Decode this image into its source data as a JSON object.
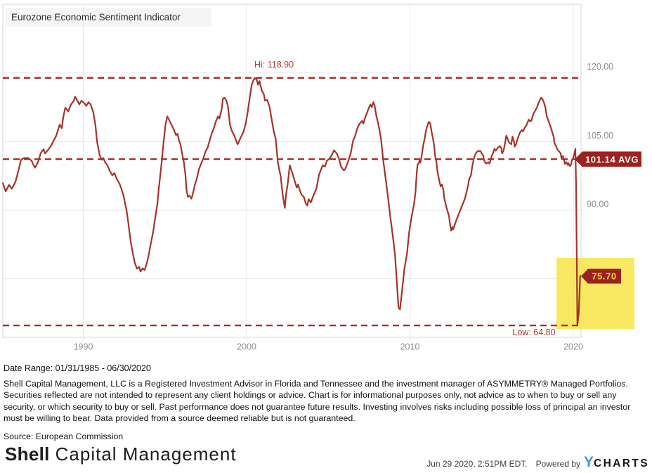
{
  "chart": {
    "title": "Eurozone Economic Sentiment Indicator",
    "hi_label": "Hi: 118.90",
    "low_label": "Low: 64.80",
    "avg_badge": "101.14 AVG",
    "last_badge": "75.70"
  },
  "colors": {
    "line": "#a5332a",
    "dashed": "#ab2d23",
    "badge": "#9c2121",
    "badge_text": "#ffffff",
    "last_badge_text": "#f3d73d",
    "highlight": "#f7e43b",
    "label_red": "#b5372e",
    "axis_gray": "#8e8e8e",
    "gridline": "#e7e7e7",
    "plot_border": "#d6d6d6",
    "title_box": "#f5f5f5",
    "ycharts_blue": "#3f97e6"
  },
  "chart_data": {
    "type": "line",
    "title": "Eurozone Economic Sentiment Indicator",
    "xlabel": "",
    "ylabel": "",
    "x_range": [
      1985.0,
      2020.5
    ],
    "high": 118.9,
    "average": 101.14,
    "low": 64.8,
    "last": 75.7,
    "y_gridline_values": [
      120,
      105,
      90,
      75
    ],
    "y_ticks": [
      {
        "label": "120.00",
        "value": 120
      },
      {
        "label": "105.00",
        "value": 105
      },
      {
        "label": "90.00",
        "value": 90
      }
    ],
    "x_ticks": [
      {
        "label": "1990",
        "year": 1990
      },
      {
        "label": "2000",
        "year": 2000
      },
      {
        "label": "2010",
        "year": 2010
      },
      {
        "label": "2020",
        "year": 2020
      }
    ],
    "legend_position": "none",
    "grid": true,
    "points": [
      [
        1985.08,
        95.9
      ],
      [
        1985.25,
        94.1
      ],
      [
        1985.46,
        95.5
      ],
      [
        1985.63,
        94.7
      ],
      [
        1985.85,
        96.2
      ],
      [
        1986.02,
        98.5
      ],
      [
        1986.19,
        101.0
      ],
      [
        1986.37,
        101.4
      ],
      [
        1986.62,
        101.4
      ],
      [
        1986.84,
        100.8
      ],
      [
        1986.92,
        100.1
      ],
      [
        1987.05,
        99.3
      ],
      [
        1987.23,
        100.5
      ],
      [
        1987.4,
        102.5
      ],
      [
        1987.57,
        103.3
      ],
      [
        1987.66,
        102.4
      ],
      [
        1987.83,
        103.1
      ],
      [
        1988.0,
        103.9
      ],
      [
        1988.17,
        105.1
      ],
      [
        1988.34,
        106.2
      ],
      [
        1988.56,
        108.7
      ],
      [
        1988.69,
        107.9
      ],
      [
        1988.77,
        110.2
      ],
      [
        1988.9,
        112.4
      ],
      [
        1989.08,
        111.6
      ],
      [
        1989.25,
        113.1
      ],
      [
        1989.42,
        113.9
      ],
      [
        1989.5,
        114.8
      ],
      [
        1989.63,
        114.0
      ],
      [
        1989.76,
        113.1
      ],
      [
        1989.89,
        113.9
      ],
      [
        1990.06,
        113.4
      ],
      [
        1990.19,
        112.8
      ],
      [
        1990.32,
        113.6
      ],
      [
        1990.45,
        113.1
      ],
      [
        1990.62,
        111.3
      ],
      [
        1990.75,
        108.5
      ],
      [
        1990.84,
        105.1
      ],
      [
        1991.01,
        101.9
      ],
      [
        1991.14,
        101.0
      ],
      [
        1991.23,
        101.4
      ],
      [
        1991.35,
        100.4
      ],
      [
        1991.48,
        99.8
      ],
      [
        1991.61,
        98.7
      ],
      [
        1991.78,
        97.6
      ],
      [
        1991.91,
        98.1
      ],
      [
        1992.04,
        96.9
      ],
      [
        1992.22,
        95.8
      ],
      [
        1992.34,
        94.6
      ],
      [
        1992.47,
        93.1
      ],
      [
        1992.65,
        90.0
      ],
      [
        1992.77,
        86.9
      ],
      [
        1992.9,
        83.2
      ],
      [
        1993.03,
        80.7
      ],
      [
        1993.16,
        78.4
      ],
      [
        1993.29,
        77.2
      ],
      [
        1993.42,
        77.6
      ],
      [
        1993.51,
        76.6
      ],
      [
        1993.64,
        77.3
      ],
      [
        1993.76,
        76.9
      ],
      [
        1993.89,
        78.4
      ],
      [
        1994.02,
        80.4
      ],
      [
        1994.15,
        83.0
      ],
      [
        1994.28,
        85.3
      ],
      [
        1994.41,
        88.4
      ],
      [
        1994.54,
        91.5
      ],
      [
        1994.62,
        94.5
      ],
      [
        1994.71,
        97.5
      ],
      [
        1994.8,
        100.5
      ],
      [
        1994.88,
        103.6
      ],
      [
        1994.97,
        106.7
      ],
      [
        1995.05,
        109.0
      ],
      [
        1995.15,
        110.5
      ],
      [
        1995.3,
        109.4
      ],
      [
        1995.43,
        108.5
      ],
      [
        1995.56,
        107.4
      ],
      [
        1995.68,
        106.4
      ],
      [
        1995.77,
        106.7
      ],
      [
        1995.86,
        105.3
      ],
      [
        1995.95,
        104.4
      ],
      [
        1996.05,
        102.4
      ],
      [
        1996.16,
        100.5
      ],
      [
        1996.25,
        97.9
      ],
      [
        1996.32,
        94.5
      ],
      [
        1996.4,
        92.9
      ],
      [
        1996.49,
        93.2
      ],
      [
        1996.62,
        92.5
      ],
      [
        1996.7,
        93.5
      ],
      [
        1996.83,
        95.5
      ],
      [
        1996.96,
        97.0
      ],
      [
        1997.09,
        99.0
      ],
      [
        1997.22,
        100.2
      ],
      [
        1997.35,
        101.3
      ],
      [
        1997.48,
        102.8
      ],
      [
        1997.61,
        103.6
      ],
      [
        1997.73,
        105.1
      ],
      [
        1997.86,
        106.7
      ],
      [
        1997.99,
        107.9
      ],
      [
        1998.12,
        109.4
      ],
      [
        1998.25,
        110.5
      ],
      [
        1998.34,
        110.0
      ],
      [
        1998.47,
        112.0
      ],
      [
        1998.55,
        114.3
      ],
      [
        1998.64,
        114.6
      ],
      [
        1998.77,
        113.9
      ],
      [
        1998.85,
        112.8
      ],
      [
        1998.98,
        108.7
      ],
      [
        1999.11,
        107.2
      ],
      [
        1999.24,
        106.4
      ],
      [
        1999.37,
        105.1
      ],
      [
        1999.45,
        104.4
      ],
      [
        1999.54,
        105.1
      ],
      [
        1999.67,
        106.1
      ],
      [
        1999.8,
        107.0
      ],
      [
        1999.93,
        108.7
      ],
      [
        2000.06,
        111.3
      ],
      [
        2000.19,
        114.5
      ],
      [
        2000.31,
        117.4
      ],
      [
        2000.4,
        118.2
      ],
      [
        2000.49,
        118.9
      ],
      [
        2000.62,
        118.5
      ],
      [
        2000.7,
        117.4
      ],
      [
        2000.79,
        118.2
      ],
      [
        2000.92,
        116.2
      ],
      [
        2001.05,
        115.4
      ],
      [
        2001.13,
        113.9
      ],
      [
        2001.26,
        114.1
      ],
      [
        2001.39,
        112.8
      ],
      [
        2001.52,
        110.2
      ],
      [
        2001.65,
        107.4
      ],
      [
        2001.78,
        105.6
      ],
      [
        2001.91,
        100.5
      ],
      [
        2001.99,
        99.0
      ],
      [
        2002.08,
        97.5
      ],
      [
        2002.21,
        93.3
      ],
      [
        2002.34,
        90.5
      ],
      [
        2002.42,
        93.6
      ],
      [
        2002.51,
        95.6
      ],
      [
        2002.64,
        99.8
      ],
      [
        2002.72,
        99.0
      ],
      [
        2002.85,
        97.5
      ],
      [
        2002.94,
        96.4
      ],
      [
        2003.07,
        94.9
      ],
      [
        2003.15,
        95.6
      ],
      [
        2003.28,
        94.1
      ],
      [
        2003.37,
        93.3
      ],
      [
        2003.5,
        92.9
      ],
      [
        2003.63,
        91.4
      ],
      [
        2003.71,
        91.0
      ],
      [
        2003.8,
        92.4
      ],
      [
        2003.93,
        91.7
      ],
      [
        2004.06,
        92.9
      ],
      [
        2004.14,
        93.6
      ],
      [
        2004.27,
        94.7
      ],
      [
        2004.44,
        97.8
      ],
      [
        2004.57,
        99.0
      ],
      [
        2004.66,
        99.8
      ],
      [
        2004.79,
        99.5
      ],
      [
        2004.92,
        100.8
      ],
      [
        2005.09,
        101.3
      ],
      [
        2005.22,
        102.1
      ],
      [
        2005.35,
        103.1
      ],
      [
        2005.52,
        102.4
      ],
      [
        2005.65,
        101.3
      ],
      [
        2005.78,
        99.5
      ],
      [
        2005.95,
        98.7
      ],
      [
        2006.04,
        99.0
      ],
      [
        2006.16,
        100.1
      ],
      [
        2006.25,
        101.0
      ],
      [
        2006.38,
        102.5
      ],
      [
        2006.51,
        105.1
      ],
      [
        2006.64,
        106.2
      ],
      [
        2006.81,
        108.2
      ],
      [
        2006.94,
        109.0
      ],
      [
        2007.07,
        109.5
      ],
      [
        2007.15,
        108.9
      ],
      [
        2007.28,
        110.5
      ],
      [
        2007.37,
        111.3
      ],
      [
        2007.5,
        112.5
      ],
      [
        2007.58,
        113.1
      ],
      [
        2007.67,
        112.5
      ],
      [
        2007.76,
        113.6
      ],
      [
        2007.84,
        112.8
      ],
      [
        2007.93,
        110.8
      ],
      [
        2008.1,
        108.2
      ],
      [
        2008.23,
        105.6
      ],
      [
        2008.36,
        101.0
      ],
      [
        2008.53,
        96.4
      ],
      [
        2008.66,
        92.8
      ],
      [
        2008.79,
        88.7
      ],
      [
        2008.96,
        84.1
      ],
      [
        2009.09,
        80.1
      ],
      [
        2009.22,
        72.9
      ],
      [
        2009.3,
        68.7
      ],
      [
        2009.39,
        68.3
      ],
      [
        2009.52,
        72.4
      ],
      [
        2009.65,
        77.0
      ],
      [
        2009.82,
        80.5
      ],
      [
        2009.95,
        85.1
      ],
      [
        2010.08,
        88.2
      ],
      [
        2010.25,
        91.3
      ],
      [
        2010.34,
        94.0
      ],
      [
        2010.42,
        98.5
      ],
      [
        2010.47,
        100.0
      ],
      [
        2010.55,
        100.3
      ],
      [
        2010.6,
        101.0
      ],
      [
        2010.64,
        100.4
      ],
      [
        2010.73,
        102.2
      ],
      [
        2010.81,
        104.1
      ],
      [
        2010.9,
        105.6
      ],
      [
        2010.98,
        107.4
      ],
      [
        2011.07,
        108.5
      ],
      [
        2011.15,
        109.3
      ],
      [
        2011.24,
        109.0
      ],
      [
        2011.32,
        107.2
      ],
      [
        2011.41,
        105.6
      ],
      [
        2011.49,
        103.9
      ],
      [
        2011.53,
        102.1
      ],
      [
        2011.62,
        100.5
      ],
      [
        2011.66,
        99.0
      ],
      [
        2011.75,
        97.2
      ],
      [
        2011.83,
        95.9
      ],
      [
        2011.88,
        95.2
      ],
      [
        2011.96,
        95.6
      ],
      [
        2012.05,
        94.4
      ],
      [
        2012.09,
        92.8
      ],
      [
        2012.22,
        90.8
      ],
      [
        2012.39,
        88.7
      ],
      [
        2012.43,
        87.5
      ],
      [
        2012.52,
        85.5
      ],
      [
        2012.6,
        86.3
      ],
      [
        2012.65,
        85.8
      ],
      [
        2012.73,
        86.7
      ],
      [
        2012.86,
        88.0
      ],
      [
        2013.0,
        89.3
      ],
      [
        2013.17,
        90.8
      ],
      [
        2013.34,
        92.3
      ],
      [
        2013.43,
        93.4
      ],
      [
        2013.56,
        95.5
      ],
      [
        2013.64,
        97.0
      ],
      [
        2013.73,
        97.5
      ],
      [
        2013.81,
        99.5
      ],
      [
        2013.9,
        101.1
      ],
      [
        2013.98,
        102.0
      ],
      [
        2014.07,
        102.6
      ],
      [
        2014.15,
        102.9
      ],
      [
        2014.32,
        102.9
      ],
      [
        2014.41,
        102.3
      ],
      [
        2014.49,
        101.9
      ],
      [
        2014.53,
        101.0
      ],
      [
        2014.62,
        100.3
      ],
      [
        2014.7,
        100.2
      ],
      [
        2014.79,
        100.5
      ],
      [
        2014.87,
        100.2
      ],
      [
        2014.96,
        101.2
      ],
      [
        2015.0,
        101.8
      ],
      [
        2015.09,
        102.5
      ],
      [
        2015.17,
        103.4
      ],
      [
        2015.26,
        103.0
      ],
      [
        2015.39,
        103.7
      ],
      [
        2015.51,
        104.0
      ],
      [
        2015.6,
        103.5
      ],
      [
        2015.64,
        102.4
      ],
      [
        2015.73,
        103.0
      ],
      [
        2015.81,
        104.5
      ],
      [
        2015.9,
        106.3
      ],
      [
        2015.98,
        105.6
      ],
      [
        2016.07,
        104.8
      ],
      [
        2016.2,
        104.4
      ],
      [
        2016.28,
        106.1
      ],
      [
        2016.37,
        105.0
      ],
      [
        2016.41,
        103.9
      ],
      [
        2016.5,
        104.4
      ],
      [
        2016.58,
        105.5
      ],
      [
        2016.71,
        106.8
      ],
      [
        2016.84,
        107.5
      ],
      [
        2016.92,
        107.2
      ],
      [
        2017.01,
        107.9
      ],
      [
        2017.14,
        108.6
      ],
      [
        2017.27,
        109.8
      ],
      [
        2017.35,
        109.4
      ],
      [
        2017.44,
        109.6
      ],
      [
        2017.56,
        111.1
      ],
      [
        2017.69,
        111.9
      ],
      [
        2017.78,
        112.5
      ],
      [
        2017.86,
        113.3
      ],
      [
        2017.95,
        114.0
      ],
      [
        2018.03,
        114.6
      ],
      [
        2018.12,
        114.2
      ],
      [
        2018.2,
        113.5
      ],
      [
        2018.29,
        112.5
      ],
      [
        2018.37,
        110.6
      ],
      [
        2018.5,
        109.3
      ],
      [
        2018.63,
        108.0
      ],
      [
        2018.8,
        106.0
      ],
      [
        2018.84,
        104.7
      ],
      [
        2018.93,
        104.1
      ],
      [
        2019.01,
        103.4
      ],
      [
        2019.06,
        103.1
      ],
      [
        2019.23,
        102.4
      ],
      [
        2019.27,
        101.4
      ],
      [
        2019.36,
        101.8
      ],
      [
        2019.44,
        100.9
      ],
      [
        2019.48,
        100.1
      ],
      [
        2019.57,
        100.5
      ],
      [
        2019.66,
        99.9
      ],
      [
        2019.7,
        100.3
      ],
      [
        2019.79,
        99.6
      ],
      [
        2019.87,
        100.0
      ],
      [
        2019.91,
        100.9
      ],
      [
        2020.0,
        101.5
      ],
      [
        2020.08,
        102.6
      ],
      [
        2020.13,
        103.4
      ],
      [
        2020.17,
        94.8
      ],
      [
        2020.25,
        64.8
      ],
      [
        2020.33,
        67.4
      ],
      [
        2020.42,
        75.7
      ]
    ]
  },
  "below_chart": {
    "date_range": "Date Range: 01/31/1985 - 06/30/2020",
    "disclaimer": "Shell Capital Management, LLC is a Registered Investment Advisor in Florida and Tennessee and the investment manager of ASYMMETRY® Managed Portfolios. Securities reflected are not intended to represent any client holdings or advice. Chart is for informational purposes only, not advice as to when to buy or sell any security, or which security to buy or sell. Past performance does not guarantee future results. Investing involves risks including possible loss of principal an investor must be willing to bear. Data provided from a source deemed reliable but is not guaranteed.",
    "source": "Source: European Commission"
  },
  "branding": {
    "logo_bold": "Shell",
    "logo_light": "Capital Management",
    "timestamp": "Jun 29 2020, 2:51PM EDT.",
    "powered_by": "Powered by",
    "ycharts_y": "Y",
    "ycharts_rest": "CHARTS"
  }
}
